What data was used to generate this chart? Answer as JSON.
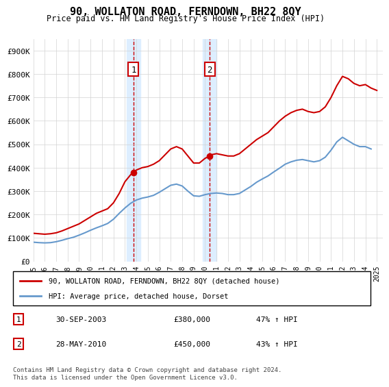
{
  "title": "90, WOLLATON ROAD, FERNDOWN, BH22 8QY",
  "subtitle": "Price paid vs. HM Land Registry's House Price Index (HPI)",
  "footnote": "Contains HM Land Registry data © Crown copyright and database right 2024.\nThis data is licensed under the Open Government Licence v3.0.",
  "legend_line1": "90, WOLLATON ROAD, FERNDOWN, BH22 8QY (detached house)",
  "legend_line2": "HPI: Average price, detached house, Dorset",
  "transaction1_label": "1",
  "transaction1_date": "30-SEP-2003",
  "transaction1_price": "£380,000",
  "transaction1_hpi": "47% ↑ HPI",
  "transaction2_label": "2",
  "transaction2_date": "28-MAY-2010",
  "transaction2_price": "£450,000",
  "transaction2_hpi": "43% ↑ HPI",
  "red_color": "#cc0000",
  "blue_color": "#6699cc",
  "shaded_color": "#ddeeff",
  "dashed_color": "#cc0000",
  "ylim": [
    0,
    950000
  ],
  "yticks": [
    0,
    100000,
    200000,
    300000,
    400000,
    500000,
    600000,
    700000,
    800000,
    900000
  ],
  "ytick_labels": [
    "£0",
    "£100K",
    "£200K",
    "£300K",
    "£400K",
    "£500K",
    "£600K",
    "£700K",
    "£800K",
    "£900K"
  ],
  "xlim_start": 1995.0,
  "xlim_end": 2025.5,
  "xticks": [
    1995,
    1996,
    1997,
    1998,
    1999,
    2000,
    2001,
    2002,
    2003,
    2004,
    2005,
    2006,
    2007,
    2008,
    2009,
    2010,
    2011,
    2012,
    2013,
    2014,
    2015,
    2016,
    2017,
    2018,
    2019,
    2020,
    2021,
    2022,
    2023,
    2024,
    2025
  ],
  "transaction1_x": 2003.75,
  "transaction2_x": 2010.4,
  "transaction1_y": 380000,
  "transaction2_y": 450000,
  "hpi_red": {
    "x": [
      1995.0,
      1995.5,
      1996.0,
      1996.5,
      1997.0,
      1997.5,
      1998.0,
      1998.5,
      1999.0,
      1999.5,
      2000.0,
      2000.5,
      2001.0,
      2001.5,
      2002.0,
      2002.5,
      2003.0,
      2003.5,
      2003.75,
      2004.0,
      2004.5,
      2005.0,
      2005.5,
      2006.0,
      2006.5,
      2007.0,
      2007.5,
      2008.0,
      2008.5,
      2009.0,
      2009.5,
      2010.0,
      2010.4,
      2010.5,
      2011.0,
      2011.5,
      2012.0,
      2012.5,
      2013.0,
      2013.5,
      2014.0,
      2014.5,
      2015.0,
      2015.5,
      2016.0,
      2016.5,
      2017.0,
      2017.5,
      2018.0,
      2018.5,
      2019.0,
      2019.5,
      2020.0,
      2020.5,
      2021.0,
      2021.5,
      2022.0,
      2022.5,
      2023.0,
      2023.5,
      2024.0,
      2024.5,
      2025.0
    ],
    "y": [
      120000,
      118000,
      116000,
      118000,
      122000,
      130000,
      140000,
      150000,
      160000,
      175000,
      190000,
      205000,
      215000,
      225000,
      250000,
      290000,
      340000,
      370000,
      380000,
      390000,
      400000,
      405000,
      415000,
      430000,
      455000,
      480000,
      490000,
      480000,
      450000,
      420000,
      420000,
      440000,
      450000,
      455000,
      460000,
      455000,
      450000,
      450000,
      460000,
      480000,
      500000,
      520000,
      535000,
      550000,
      575000,
      600000,
      620000,
      635000,
      645000,
      650000,
      640000,
      635000,
      640000,
      660000,
      700000,
      750000,
      790000,
      780000,
      760000,
      750000,
      755000,
      740000,
      730000
    ]
  },
  "hpi_blue": {
    "x": [
      1995.0,
      1995.5,
      1996.0,
      1996.5,
      1997.0,
      1997.5,
      1998.0,
      1998.5,
      1999.0,
      1999.5,
      2000.0,
      2000.5,
      2001.0,
      2001.5,
      2002.0,
      2002.5,
      2003.0,
      2003.5,
      2004.0,
      2004.5,
      2005.0,
      2005.5,
      2006.0,
      2006.5,
      2007.0,
      2007.5,
      2008.0,
      2008.5,
      2009.0,
      2009.5,
      2010.0,
      2010.5,
      2011.0,
      2011.5,
      2012.0,
      2012.5,
      2013.0,
      2013.5,
      2014.0,
      2014.5,
      2015.0,
      2015.5,
      2016.0,
      2016.5,
      2017.0,
      2017.5,
      2018.0,
      2018.5,
      2019.0,
      2019.5,
      2020.0,
      2020.5,
      2021.0,
      2021.5,
      2022.0,
      2022.5,
      2023.0,
      2023.5,
      2024.0,
      2024.5
    ],
    "y": [
      82000,
      80000,
      79000,
      80000,
      84000,
      90000,
      97000,
      103000,
      112000,
      122000,
      133000,
      143000,
      152000,
      162000,
      180000,
      205000,
      228000,
      248000,
      262000,
      270000,
      275000,
      282000,
      295000,
      310000,
      325000,
      330000,
      322000,
      300000,
      280000,
      278000,
      285000,
      290000,
      292000,
      290000,
      285000,
      285000,
      290000,
      305000,
      320000,
      338000,
      352000,
      365000,
      382000,
      398000,
      415000,
      425000,
      432000,
      435000,
      430000,
      425000,
      430000,
      445000,
      475000,
      510000,
      530000,
      515000,
      500000,
      490000,
      490000,
      480000
    ]
  }
}
